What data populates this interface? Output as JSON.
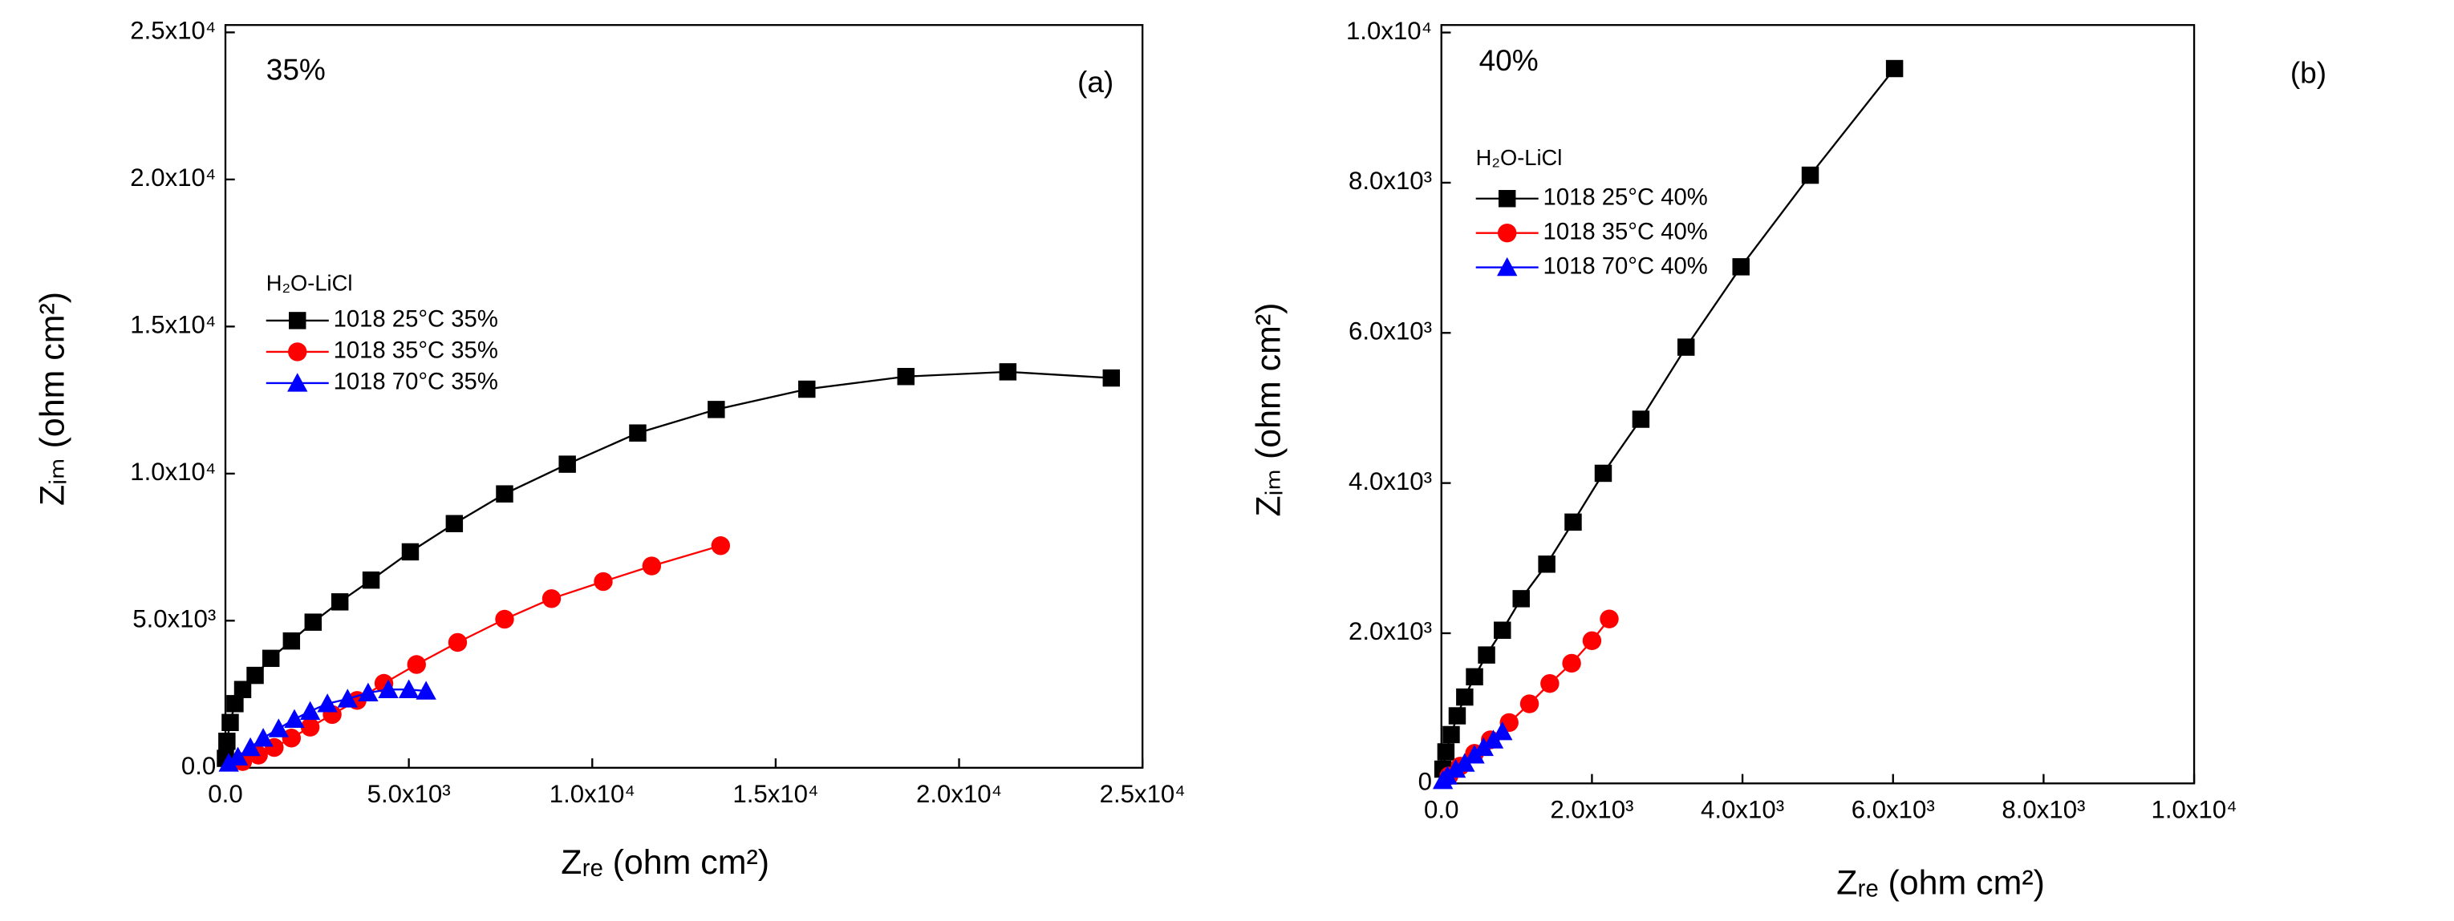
{
  "chart_data": [
    {
      "type": "line",
      "annotation": "35%",
      "panel_label": "(a)",
      "x_label": "Zᵣₑ (ohm cm²)",
      "y_label": "Zᵢₘ (ohm cm²)",
      "legend_title": "H₂O-LiCl",
      "legend": "upper left",
      "xlim": [
        0,
        25000
      ],
      "ylim": [
        0,
        25250
      ],
      "xticks": [
        {
          "value": 0,
          "label": "0.0"
        },
        {
          "value": 5000,
          "label": "5.0x10³"
        },
        {
          "value": 10000,
          "label": "1.0x10⁴"
        },
        {
          "value": 15000,
          "label": "1.5x10⁴"
        },
        {
          "value": 20000,
          "label": "2.0x10⁴"
        },
        {
          "value": 25000,
          "label": "2.5x10⁴"
        }
      ],
      "yticks": [
        {
          "value": 0,
          "label": "0.0"
        },
        {
          "value": 5000,
          "label": "5.0x10³"
        },
        {
          "value": 10000,
          "label": "1.0x10⁴"
        },
        {
          "value": 15000,
          "label": "1.5x10⁴"
        },
        {
          "value": 20000,
          "label": "2.0x10⁴"
        },
        {
          "value": 25000,
          "label": "2.5x10⁴"
        }
      ],
      "series": [
        {
          "name": "1018 25°C 35%",
          "color": "#000000",
          "marker": "square",
          "x": [
            24150,
            21330,
            18550,
            15850,
            13380,
            11240,
            9320,
            7610,
            6240,
            5040,
            3970,
            3120,
            2390,
            1800,
            1240,
            810,
            470,
            260,
            130,
            40,
            0
          ],
          "values": [
            13250,
            13460,
            13300,
            12870,
            12180,
            11380,
            10320,
            9310,
            8300,
            7340,
            6380,
            5640,
            4950,
            4310,
            3720,
            3140,
            2660,
            2180,
            1540,
            900,
            320
          ]
        },
        {
          "name": "1018 35°C 35%",
          "color": "#ff0000",
          "marker": "circle",
          "x": [
            13500,
            11620,
            10300,
            8890,
            7610,
            6330,
            5210,
            4320,
            3590,
            2910,
            2310,
            1800,
            1330,
            900,
            470
          ],
          "values": [
            7550,
            6860,
            6330,
            5750,
            5050,
            4260,
            3510,
            2870,
            2290,
            1810,
            1380,
            1010,
            690,
            430,
            210
          ]
        },
        {
          "name": "1018 70°C 35%",
          "color": "#0000ff",
          "marker": "triangle",
          "x": [
            5470,
            5000,
            4440,
            3890,
            3330,
            2780,
            2310,
            1880,
            1450,
            1030,
            680,
            340,
            90
          ],
          "values": [
            2610,
            2660,
            2660,
            2550,
            2340,
            2180,
            1920,
            1650,
            1330,
            1010,
            690,
            370,
            160
          ]
        }
      ]
    },
    {
      "type": "line",
      "annotation": "40%",
      "panel_label": "(b)",
      "x_label": "Zᵣₑ (ohm cm²)",
      "y_label": "Zᵢₘ (ohm cm²)",
      "legend_title": "H₂O-LiCl",
      "legend": "upper left",
      "xlim": [
        0,
        10000
      ],
      "ylim": [
        0,
        10100
      ],
      "xticks": [
        {
          "value": 0,
          "label": "0.0"
        },
        {
          "value": 2000,
          "label": "2.0x10³"
        },
        {
          "value": 4000,
          "label": "4.0x10³"
        },
        {
          "value": 6000,
          "label": "6.0x10³"
        },
        {
          "value": 8000,
          "label": "8.0x10³"
        },
        {
          "value": 10000,
          "label": "1.0x10⁴"
        }
      ],
      "yticks": [
        0,
        {
          "value": 2000,
          "label": "2.0x10³"
        },
        {
          "value": 4000,
          "label": "4.0x10³"
        },
        {
          "value": 6000,
          "label": "6.0x10³"
        },
        {
          "value": 8000,
          "label": "8.0x10³"
        },
        {
          "value": 10000,
          "label": "1.0x10⁴"
        }
      ],
      "series": [
        {
          "name": "1018 25°C 40%",
          "color": "#000000",
          "marker": "square",
          "x": [
            6020,
            4900,
            3980,
            3250,
            2650,
            2150,
            1750,
            1400,
            1060,
            810,
            600,
            440,
            310,
            210,
            130,
            60,
            20
          ],
          "values": [
            9520,
            8100,
            6880,
            5810,
            4850,
            4130,
            3480,
            2920,
            2460,
            2040,
            1710,
            1420,
            1150,
            900,
            650,
            420,
            190
          ]
        },
        {
          "name": "1018 35°C 40%",
          "color": "#ff0000",
          "marker": "circle",
          "x": [
            2230,
            2000,
            1730,
            1440,
            1170,
            900,
            650,
            440,
            250,
            100
          ],
          "values": [
            2190,
            1900,
            1600,
            1330,
            1060,
            810,
            580,
            400,
            230,
            100
          ]
        },
        {
          "name": "1018 70°C 40%",
          "color": "#0000ff",
          "marker": "triangle",
          "x": [
            810,
            690,
            560,
            440,
            310,
            190,
            80,
            20
          ],
          "values": [
            690,
            580,
            480,
            380,
            270,
            190,
            100,
            40
          ]
        }
      ]
    }
  ]
}
